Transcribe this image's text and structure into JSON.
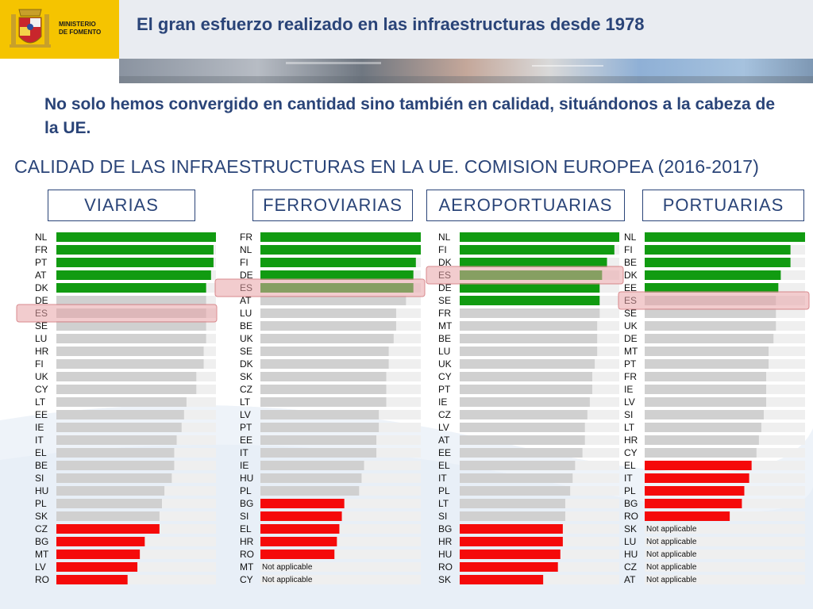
{
  "header": {
    "ministry_line1": "MINISTERIO",
    "ministry_line2": "DE FOMENTO",
    "title": "El gran esfuerzo realizado en las infraestructuras desde 1978"
  },
  "lead": "No solo hemos convergido en cantidad sino también en calidad, situándonos a la cabeza de la UE.",
  "section_title": "CALIDAD DE LAS INFRAESTRUCTURAS EN LA UE. COMISION EUROPEA (2016-2017)",
  "colors": {
    "green": "#119b11",
    "grey": "#d0d0d0",
    "red": "#f50a0a",
    "track": "#efefef",
    "highlight": "#e7a3a6",
    "title_blue": "#2a4478"
  },
  "chart_data": [
    {
      "type": "bar",
      "title": "VIARIAS",
      "orientation": "horizontal",
      "categories": [
        "NL",
        "FR",
        "PT",
        "AT",
        "DK",
        "DE",
        "ES",
        "SE",
        "LU",
        "HR",
        "FI",
        "UK",
        "CY",
        "LT",
        "EE",
        "IE",
        "IT",
        "EL",
        "BE",
        "SI",
        "HU",
        "PL",
        "SK",
        "CZ",
        "BG",
        "MT",
        "LV",
        "RO"
      ],
      "values": [
        6.5,
        6.4,
        6.4,
        6.3,
        6.1,
        6.1,
        6.1,
        6.1,
        6.1,
        6.0,
        6.0,
        5.7,
        5.7,
        5.3,
        5.2,
        5.1,
        4.9,
        4.8,
        4.8,
        4.7,
        4.4,
        4.3,
        4.2,
        4.2,
        3.6,
        3.4,
        3.3,
        2.9
      ],
      "status": [
        "top",
        "top",
        "top",
        "top",
        "top",
        "mid",
        "mid",
        "mid",
        "mid",
        "mid",
        "mid",
        "mid",
        "mid",
        "mid",
        "mid",
        "mid",
        "mid",
        "mid",
        "mid",
        "mid",
        "mid",
        "mid",
        "mid",
        "low",
        "low",
        "low",
        "low",
        "low"
      ],
      "highlight": "ES",
      "not_applicable": [],
      "max": 6.5
    },
    {
      "type": "bar",
      "title": "FERROVIARIAS",
      "orientation": "horizontal",
      "categories": [
        "FR",
        "NL",
        "FI",
        "DE",
        "ES",
        "AT",
        "LU",
        "BE",
        "UK",
        "SE",
        "DK",
        "SK",
        "CZ",
        "LT",
        "LV",
        "PT",
        "EE",
        "IT",
        "IE",
        "HU",
        "PL",
        "BG",
        "SI",
        "EL",
        "HR",
        "RO",
        "MT",
        "CY"
      ],
      "values": [
        6.5,
        6.5,
        6.3,
        6.2,
        6.2,
        5.9,
        5.5,
        5.5,
        5.4,
        5.2,
        5.2,
        5.1,
        5.1,
        5.1,
        4.8,
        4.8,
        4.7,
        4.7,
        4.2,
        4.1,
        4.0,
        3.4,
        3.3,
        3.2,
        3.1,
        3.0,
        null,
        null
      ],
      "status": [
        "top",
        "top",
        "top",
        "top",
        "top",
        "mid",
        "mid",
        "mid",
        "mid",
        "mid",
        "mid",
        "mid",
        "mid",
        "mid",
        "mid",
        "mid",
        "mid",
        "mid",
        "mid",
        "mid",
        "mid",
        "low",
        "low",
        "low",
        "low",
        "low",
        "na",
        "na"
      ],
      "highlight": "ES",
      "not_applicable": [
        "MT",
        "CY"
      ],
      "not_applicable_label": "Not applicable",
      "max": 6.5
    },
    {
      "type": "bar",
      "title": "AEROPORTUARIAS",
      "orientation": "horizontal",
      "categories": [
        "NL",
        "FI",
        "DK",
        "ES",
        "DE",
        "SE",
        "FR",
        "MT",
        "BE",
        "LU",
        "UK",
        "CY",
        "PT",
        "IE",
        "CZ",
        "LV",
        "AT",
        "EE",
        "EL",
        "IT",
        "PL",
        "LT",
        "SI",
        "BG",
        "HR",
        "HU",
        "RO",
        "SK"
      ],
      "values": [
        6.5,
        6.3,
        6.0,
        5.8,
        5.7,
        5.7,
        5.7,
        5.6,
        5.6,
        5.6,
        5.5,
        5.4,
        5.4,
        5.3,
        5.2,
        5.1,
        5.1,
        5.0,
        4.7,
        4.6,
        4.5,
        4.3,
        4.3,
        4.2,
        4.2,
        4.1,
        4.0,
        3.4
      ],
      "status": [
        "top",
        "top",
        "top",
        "top",
        "top",
        "top",
        "mid",
        "mid",
        "mid",
        "mid",
        "mid",
        "mid",
        "mid",
        "mid",
        "mid",
        "mid",
        "mid",
        "mid",
        "mid",
        "mid",
        "mid",
        "mid",
        "mid",
        "low",
        "low",
        "low",
        "low",
        "low"
      ],
      "highlight": "ES",
      "not_applicable": [],
      "max": 6.5
    },
    {
      "type": "bar",
      "title": "PORTUARIAS",
      "orientation": "horizontal",
      "categories": [
        "NL",
        "FI",
        "BE",
        "DK",
        "EE",
        "ES",
        "SE",
        "UK",
        "DE",
        "MT",
        "PT",
        "FR",
        "IE",
        "LV",
        "SI",
        "LT",
        "HR",
        "CY",
        "EL",
        "IT",
        "PL",
        "BG",
        "RO",
        "SK",
        "LU",
        "HU",
        "CZ",
        "AT"
      ],
      "values": [
        6.6,
        6.0,
        6.0,
        5.6,
        5.5,
        5.4,
        5.4,
        5.4,
        5.3,
        5.1,
        5.1,
        5.0,
        5.0,
        5.0,
        4.9,
        4.8,
        4.7,
        4.6,
        4.4,
        4.3,
        4.1,
        4.0,
        3.5,
        null,
        null,
        null,
        null,
        null
      ],
      "status": [
        "top",
        "top",
        "top",
        "top",
        "top",
        "mid",
        "mid",
        "mid",
        "mid",
        "mid",
        "mid",
        "mid",
        "mid",
        "mid",
        "mid",
        "mid",
        "mid",
        "mid",
        "low",
        "low",
        "low",
        "low",
        "low",
        "na",
        "na",
        "na",
        "na",
        "na"
      ],
      "highlight": "ES",
      "not_applicable": [
        "SK",
        "LU",
        "HU",
        "CZ",
        "AT"
      ],
      "not_applicable_label": "Not applicable",
      "max": 6.6
    }
  ]
}
